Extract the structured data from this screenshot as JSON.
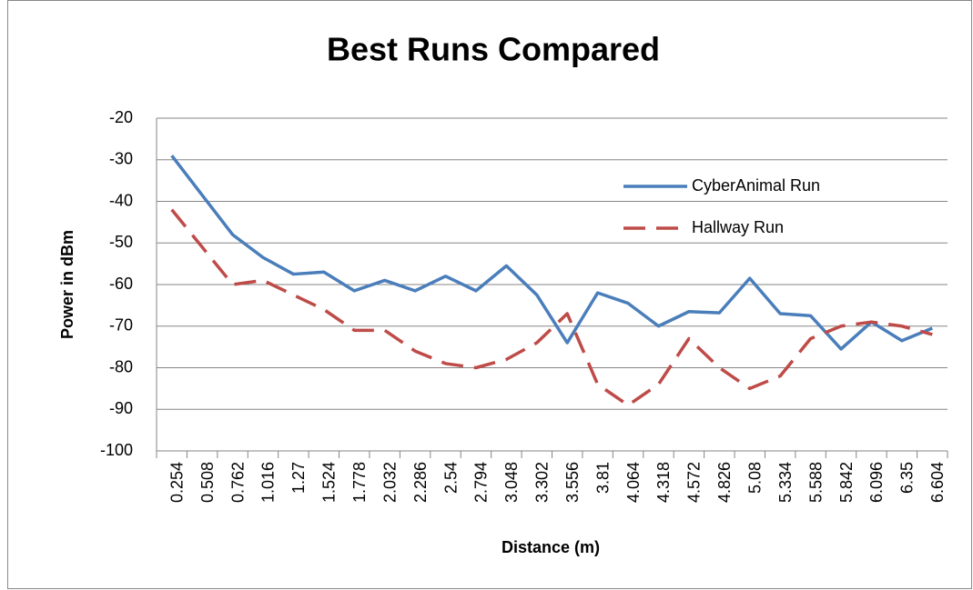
{
  "chart_data": {
    "type": "line",
    "title": "Best Runs Compared",
    "x_label": "Distance (m)",
    "y_label": "Power in dBm",
    "categories": [
      "0.254",
      "0.508",
      "0.762",
      "1.016",
      "1.27",
      "1.524",
      "1.778",
      "2.032",
      "2.286",
      "2.54",
      "2.794",
      "3.048",
      "3.302",
      "3.556",
      "3.81",
      "4.064",
      "4.318",
      "4.572",
      "4.826",
      "5.08",
      "5.334",
      "5.588",
      "5.842",
      "6.096",
      "6.35",
      "6.604"
    ],
    "series": [
      {
        "name": "CyberAnimal Run",
        "color": "#4a7ebb",
        "dash": "solid",
        "values": [
          -29,
          -38.5,
          -48,
          -53.5,
          -57.5,
          -57,
          -61.5,
          -59,
          -61.5,
          -58,
          -61.5,
          -55.5,
          -62.5,
          -74,
          -62,
          -64.5,
          -70,
          -66.5,
          -66.8,
          -58.5,
          -67,
          -67.5,
          -75.5,
          -69,
          -73.5,
          -70.5
        ]
      },
      {
        "name": "Hallway Run",
        "color": "#be4b48",
        "dash": "dashed",
        "values": [
          -42,
          -51,
          -60,
          -59,
          -62.5,
          -66,
          -71,
          -71,
          -76,
          -79,
          -80,
          -78,
          -74,
          -67,
          -84,
          -89,
          -84,
          -73,
          -80,
          -85,
          -82,
          -73,
          -70,
          -69,
          -70,
          -72
        ]
      }
    ],
    "ylim": [
      -100,
      -20
    ],
    "yticks": [
      -20,
      -30,
      -40,
      -50,
      -60,
      -70,
      -80,
      -90,
      -100
    ],
    "grid": true,
    "legend": "upper right"
  }
}
